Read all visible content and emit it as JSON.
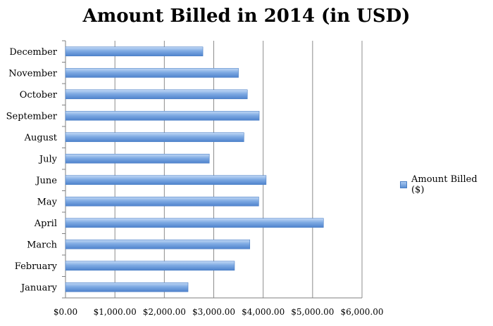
{
  "chart_data": {
    "type": "bar",
    "orientation": "horizontal",
    "title": "Amount Billed in 2014 (in USD)",
    "categories": [
      "January",
      "February",
      "March",
      "April",
      "May",
      "June",
      "July",
      "August",
      "September",
      "October",
      "November",
      "December"
    ],
    "series": [
      {
        "name": "Amount Billed ($)",
        "values": [
          2480,
          3420,
          3730,
          5220,
          3910,
          4060,
          2910,
          3610,
          3920,
          3680,
          3500,
          2780
        ],
        "color": "#6f9fdd"
      }
    ],
    "xlim": [
      0,
      6000
    ],
    "x_ticks": [
      0,
      1000,
      2000,
      3000,
      4000,
      5000,
      6000
    ],
    "x_tick_labels": [
      "$0.00",
      "$1,000.00",
      "$2,000.00",
      "$3,000.00",
      "$4,000.00",
      "$5,000.00",
      "$6,000.00"
    ],
    "grid": "vertical",
    "legend_position": "right"
  }
}
